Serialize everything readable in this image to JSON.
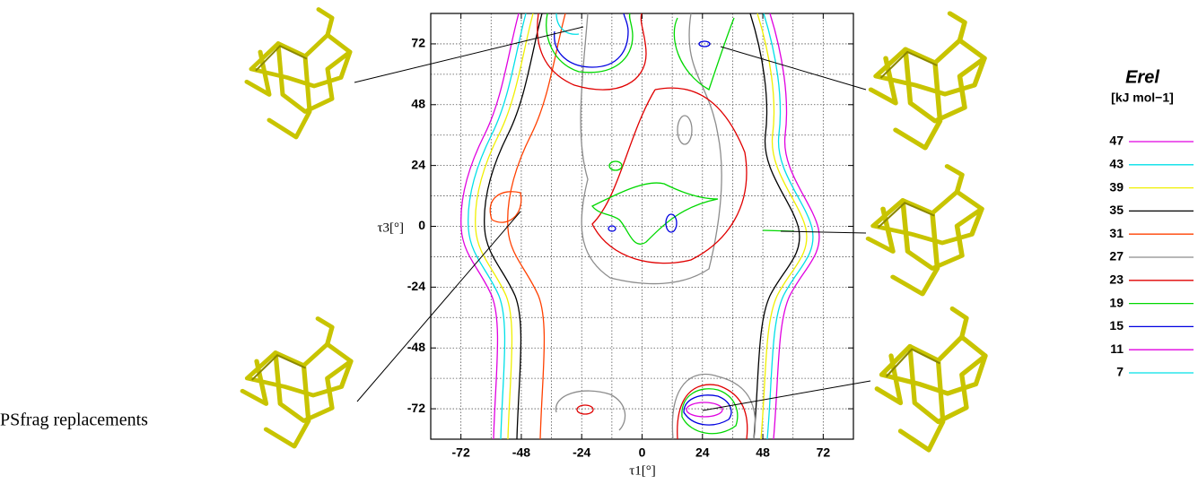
{
  "chart_data": {
    "type": "contour",
    "x_label": "τ1[°]",
    "y_label": "τ3[°]",
    "legend_title": "Erel",
    "legend_unit": "[kJ mol−1]",
    "note": "PSfrag replacements",
    "xlim": [
      -84,
      84
    ],
    "ylim": [
      -84,
      84
    ],
    "xticks": [
      -72,
      -48,
      -24,
      0,
      24,
      48,
      72
    ],
    "yticks": [
      -72,
      -48,
      -24,
      0,
      24,
      48,
      72
    ],
    "minor_ticks": [
      -84,
      -60,
      -36,
      -12,
      12,
      36,
      60,
      84
    ],
    "grid": true,
    "levels": [
      47,
      43,
      39,
      35,
      31,
      27,
      23,
      19,
      15,
      11,
      7
    ],
    "level_colors": [
      "#e000e0",
      "#00e0e8",
      "#f0f000",
      "#000000",
      "#ff4000",
      "#8c8c8c",
      "#e00000",
      "#00d800",
      "#0000e0",
      "#e000e0",
      "#00e0e8"
    ]
  }
}
